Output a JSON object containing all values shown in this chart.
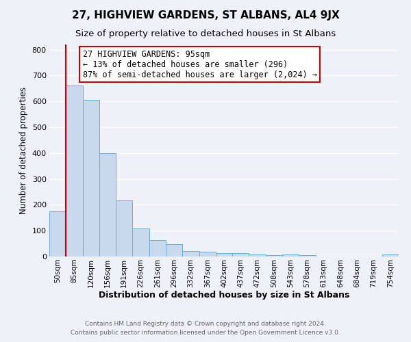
{
  "title": "27, HIGHVIEW GARDENS, ST ALBANS, AL4 9JX",
  "subtitle": "Size of property relative to detached houses in St Albans",
  "xlabel": "Distribution of detached houses by size in St Albans",
  "ylabel": "Number of detached properties",
  "bin_labels": [
    "50sqm",
    "85sqm",
    "120sqm",
    "156sqm",
    "191sqm",
    "226sqm",
    "261sqm",
    "296sqm",
    "332sqm",
    "367sqm",
    "402sqm",
    "437sqm",
    "472sqm",
    "508sqm",
    "543sqm",
    "578sqm",
    "613sqm",
    "648sqm",
    "684sqm",
    "719sqm",
    "754sqm"
  ],
  "bar_heights": [
    175,
    660,
    605,
    400,
    218,
    108,
    64,
    47,
    20,
    18,
    13,
    12,
    8,
    6,
    7,
    5,
    0,
    0,
    0,
    0,
    8
  ],
  "bar_color": "#c8d9ee",
  "bar_edge_color": "#6aaed6",
  "vline_x": 1.0,
  "vline_color": "#cc0000",
  "annotation_text": "27 HIGHVIEW GARDENS: 95sqm\n← 13% of detached houses are smaller (296)\n87% of semi-detached houses are larger (2,024) →",
  "annotation_box_color": "#ffffff",
  "annotation_box_edge": "#cc0000",
  "ylim": [
    0,
    820
  ],
  "yticks": [
    0,
    100,
    200,
    300,
    400,
    500,
    600,
    700,
    800
  ],
  "footer1": "Contains HM Land Registry data © Crown copyright and database right 2024.",
  "footer2": "Contains public sector information licensed under the Open Government Licence v3.0.",
  "background_color": "#eef2f8",
  "grid_color": "#ffffff",
  "title_fontsize": 11,
  "subtitle_fontsize": 9.5,
  "ann_fontsize": 8.5,
  "xlabel_fontsize": 9,
  "ylabel_fontsize": 8.5
}
